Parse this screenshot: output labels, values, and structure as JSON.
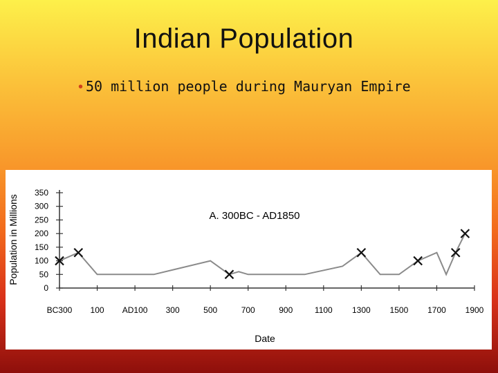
{
  "slide": {
    "title": "Indian Population",
    "bullets": [
      "50 million people during Mauryan Empire"
    ]
  },
  "chart_data": {
    "type": "line",
    "title": "A. 300BC - AD1850",
    "xlabel": "Date",
    "ylabel": "Population in Millions",
    "x_tick_labels": [
      "BC300",
      "100",
      "AD100",
      "300",
      "500",
      "700",
      "900",
      "1100",
      "1300",
      "1500",
      "1700",
      "1900"
    ],
    "x_ticks": [
      -300,
      -100,
      100,
      300,
      500,
      700,
      900,
      1100,
      1300,
      1500,
      1700,
      1900
    ],
    "xlim": [
      -300,
      1900
    ],
    "ylim": [
      0,
      350
    ],
    "y_ticks": [
      0,
      50,
      100,
      150,
      200,
      250,
      300,
      350
    ],
    "grid": false,
    "line_color": "#8a8a8a",
    "series": [
      {
        "points": [
          {
            "x": -300,
            "y": 100
          },
          {
            "x": -200,
            "y": 130
          },
          {
            "x": -100,
            "y": 50
          },
          {
            "x": 200,
            "y": 50
          },
          {
            "x": 500,
            "y": 100
          },
          {
            "x": 600,
            "y": 50
          },
          {
            "x": 650,
            "y": 60
          },
          {
            "x": 700,
            "y": 50
          },
          {
            "x": 1000,
            "y": 50
          },
          {
            "x": 1200,
            "y": 80
          },
          {
            "x": 1300,
            "y": 130
          },
          {
            "x": 1400,
            "y": 50
          },
          {
            "x": 1500,
            "y": 50
          },
          {
            "x": 1600,
            "y": 100
          },
          {
            "x": 1700,
            "y": 130
          },
          {
            "x": 1750,
            "y": 50
          },
          {
            "x": 1800,
            "y": 130
          },
          {
            "x": 1850,
            "y": 200
          }
        ]
      }
    ],
    "markers": [
      {
        "x": -300,
        "y": 100
      },
      {
        "x": -200,
        "y": 130
      },
      {
        "x": 600,
        "y": 50
      },
      {
        "x": 1300,
        "y": 130
      },
      {
        "x": 1600,
        "y": 100
      },
      {
        "x": 1800,
        "y": 130
      },
      {
        "x": 1850,
        "y": 200
      }
    ]
  }
}
